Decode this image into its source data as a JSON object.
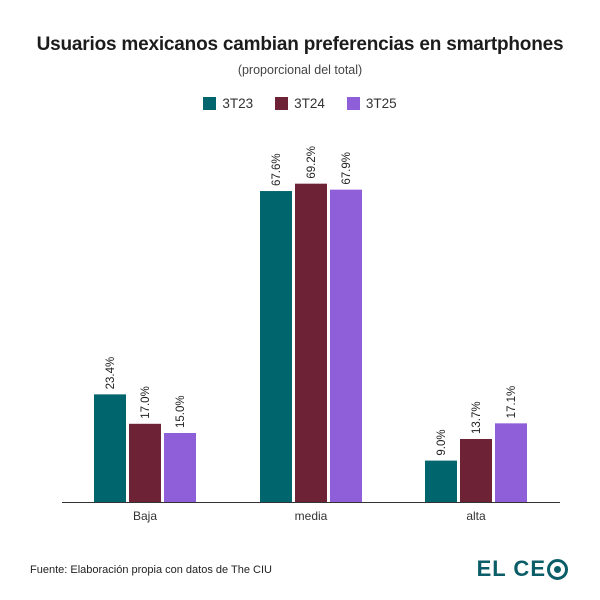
{
  "chart_data": {
    "type": "bar",
    "title": "Usuarios mexicanos cambian preferencias en smartphones",
    "subtitle": "(proporcional del total)",
    "categories": [
      "Baja",
      "media",
      "alta"
    ],
    "series": [
      {
        "name": "3T23",
        "color": "#00656c",
        "values": [
          23.4,
          67.6,
          9.0
        ],
        "labels": [
          "23.4%",
          "67.6%",
          "9.0%"
        ]
      },
      {
        "name": "3T24",
        "color": "#6e2236",
        "values": [
          17.0,
          69.2,
          13.7
        ],
        "labels": [
          "17.0%",
          "69.2%",
          "13.7%"
        ]
      },
      {
        "name": "3T25",
        "color": "#8e5fd9",
        "values": [
          15.0,
          67.9,
          17.1
        ],
        "labels": [
          "15.0%",
          "67.9%",
          "17.1%"
        ]
      }
    ],
    "ylim": [
      0,
      70
    ],
    "grid": false,
    "legend_position": "top-center",
    "data_labels": true
  },
  "footer": {
    "source": "Fuente: Elaboración propia con datos de The CIU"
  },
  "logo": {
    "text_part": "EL CE",
    "color": "#0b5e67"
  }
}
